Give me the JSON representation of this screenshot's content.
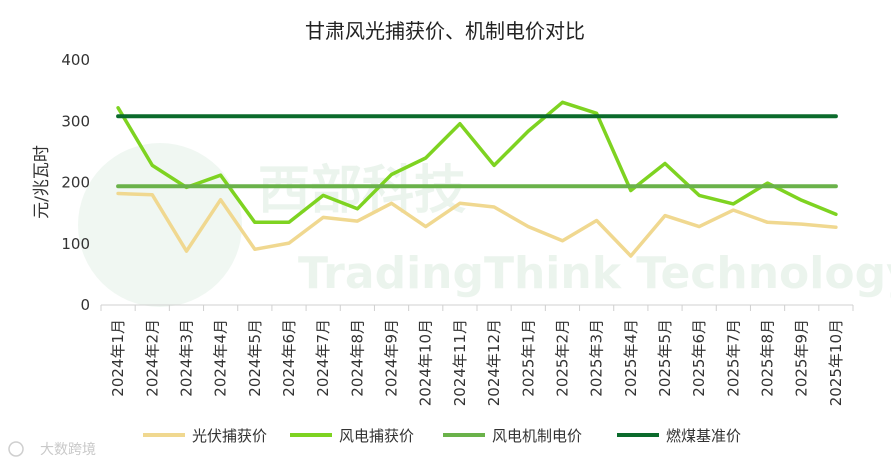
{
  "chart_data": {
    "type": "line",
    "title": "甘肃风光捕获价、机制电价对比",
    "ylabel": "元/兆瓦时",
    "xlabel": "",
    "ylim": [
      0,
      400
    ],
    "yticks": [
      0,
      100,
      200,
      300,
      400
    ],
    "grid": false,
    "legend": "bottom",
    "categories": [
      "2024年1月",
      "2024年2月",
      "2024年3月",
      "2024年4月",
      "2024年5月",
      "2024年6月",
      "2024年7月",
      "2024年8月",
      "2024年9月",
      "2024年10月",
      "2024年11月",
      "2024年12月",
      "2025年1月",
      "2025年2月",
      "2025年3月",
      "2025年4月",
      "2025年5月",
      "2025年6月",
      "2025年7月",
      "2025年8月",
      "2025年9月",
      "2025年10月"
    ],
    "series": [
      {
        "name": "光伏捕获价",
        "color": "#f0d890",
        "values": [
          182,
          180,
          88,
          172,
          91,
          101,
          143,
          137,
          166,
          128,
          166,
          160,
          128,
          105,
          138,
          80,
          146,
          128,
          155,
          135,
          132,
          127
        ]
      },
      {
        "name": "风电捕获价",
        "color": "#7ed321",
        "values": [
          322,
          228,
          192,
          212,
          135,
          135,
          179,
          157,
          213,
          240,
          296,
          228,
          284,
          331,
          313,
          187,
          231,
          179,
          165,
          199,
          171,
          148
        ]
      },
      {
        "name": "风电机制电价",
        "color": "#6ab24a",
        "values": [
          194,
          194,
          194,
          194,
          194,
          194,
          194,
          194,
          194,
          194,
          194,
          194,
          194,
          194,
          194,
          194,
          194,
          194,
          194,
          194,
          194,
          194
        ]
      },
      {
        "name": "燃煤基准价",
        "color": "#0b6b2c",
        "values": [
          308,
          308,
          308,
          308,
          308,
          308,
          308,
          308,
          308,
          308,
          308,
          308,
          308,
          308,
          308,
          308,
          308,
          308,
          308,
          308,
          308,
          308
        ]
      }
    ]
  },
  "watermark": {
    "chinese": "西部科技",
    "english": "TradingThink Technology"
  },
  "corner_brand": "大数跨境"
}
